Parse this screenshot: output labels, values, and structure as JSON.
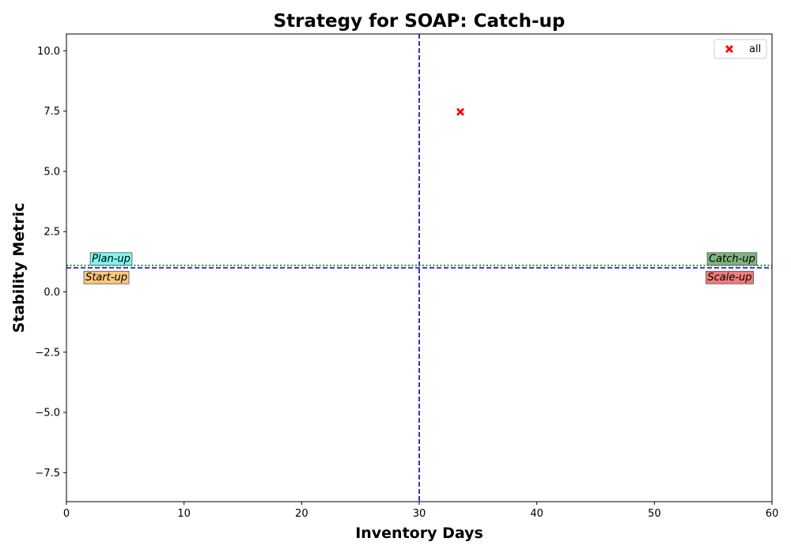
{
  "chart_data": {
    "type": "scatter",
    "title": "Strategy for SOAP: Catch-up",
    "xlabel": "Inventory Days",
    "ylabel": "Stability Metric",
    "xlim": [
      0,
      60
    ],
    "ylim": [
      -8.7,
      10.7
    ],
    "x_ticks": [
      0,
      10,
      20,
      30,
      40,
      50,
      60
    ],
    "x_tick_labels": [
      "0",
      "10",
      "20",
      "30",
      "40",
      "50",
      "60"
    ],
    "y_ticks": [
      -7.5,
      -5.0,
      -2.5,
      0.0,
      2.5,
      5.0,
      7.5,
      10.0
    ],
    "y_tick_labels": [
      "−7.5",
      "−5.0",
      "−2.5",
      "0.0",
      "2.5",
      "5.0",
      "7.5",
      "10.0"
    ],
    "grid": false,
    "legend_position": "top-right",
    "series": [
      {
        "name": "all",
        "marker": "x",
        "color": "#ff0000",
        "points": [
          [
            33.5,
            7.47
          ]
        ]
      }
    ],
    "reference_lines": [
      {
        "orientation": "vertical",
        "value": 30,
        "style": "dashed",
        "color": "#0000bb"
      },
      {
        "orientation": "horizontal",
        "value": 1.0,
        "style": "dashed",
        "color": "#0000bb"
      },
      {
        "orientation": "horizontal",
        "value": 1.1,
        "style": "dotted",
        "color": "#008000"
      }
    ],
    "quadrant_labels": [
      {
        "text": "Plan-up",
        "x": 3.8,
        "y": 1.4,
        "bg": "#7ff5f0"
      },
      {
        "text": "Start-up",
        "x": 3.4,
        "y": 0.63,
        "bg": "#fcc77b"
      },
      {
        "text": "Catch-up",
        "x": 56.6,
        "y": 1.4,
        "bg": "#7fb57f"
      },
      {
        "text": "Scale-up",
        "x": 56.4,
        "y": 0.63,
        "bg": "#f07a7a"
      }
    ]
  }
}
